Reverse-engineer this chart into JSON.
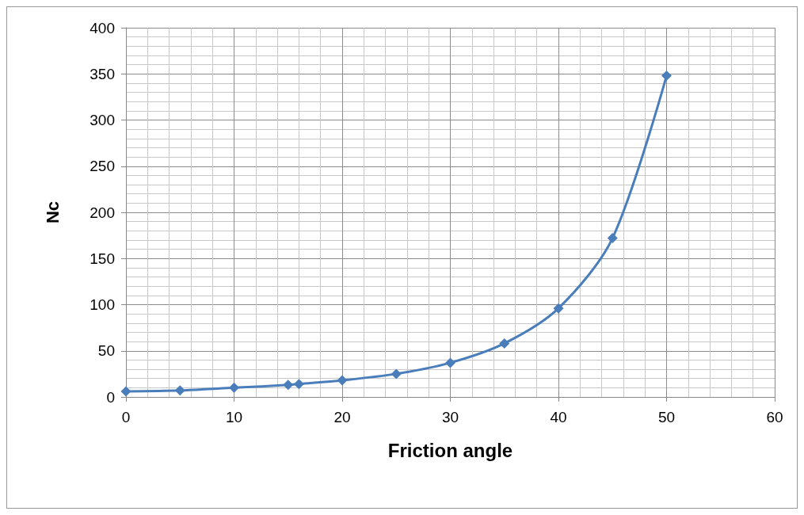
{
  "chart_data": {
    "type": "line",
    "xlabel": "Friction angle",
    "ylabel": "Nc",
    "x": [
      0,
      5,
      10,
      15,
      16,
      20,
      25,
      30,
      35,
      40,
      45,
      50
    ],
    "series": [
      {
        "color": "#4a7ebb",
        "values": [
          6,
          7,
          10,
          13,
          14,
          18,
          25,
          37,
          58,
          96,
          172,
          348
        ]
      }
    ],
    "xlim": [
      0,
      60
    ],
    "xticks": [
      0,
      10,
      20,
      30,
      40,
      50,
      60
    ],
    "ylim": [
      0,
      400
    ],
    "yticks": [
      0,
      50,
      100,
      150,
      200,
      250,
      300,
      350,
      400
    ],
    "grid": true,
    "marker": "diamond",
    "line_style": "solid"
  }
}
